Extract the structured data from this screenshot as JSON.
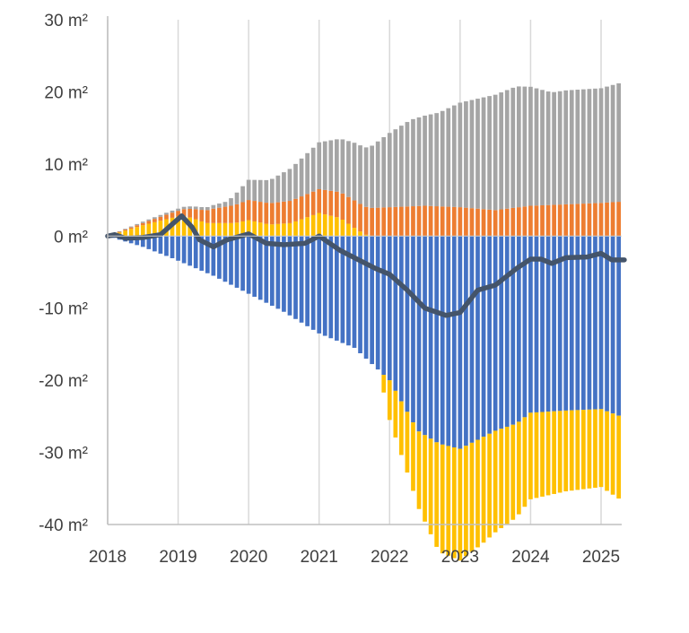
{
  "chart_data": {
    "type": "bar",
    "stacked": true,
    "title": "",
    "xlabel": "",
    "ylabel": "",
    "ylim": [
      -40,
      30
    ],
    "yticks": [
      {
        "value": 30,
        "label": "30 m²"
      },
      {
        "value": 20,
        "label": "20 m²"
      },
      {
        "value": 10,
        "label": "10 m²"
      },
      {
        "value": 0,
        "label": "0 m²"
      },
      {
        "value": -10,
        "label": "-10 m²"
      },
      {
        "value": -20,
        "label": "-20 m²"
      },
      {
        "value": -30,
        "label": "-30 m²"
      },
      {
        "value": -40,
        "label": "-40 m²"
      }
    ],
    "xlim": [
      2018.0,
      2025.33
    ],
    "xticks": [
      {
        "value": 2018,
        "label": "2018"
      },
      {
        "value": 2019,
        "label": "2019"
      },
      {
        "value": 2020,
        "label": "2020"
      },
      {
        "value": 2021,
        "label": "2021"
      },
      {
        "value": 2022,
        "label": "2022"
      },
      {
        "value": 2023,
        "label": "2023"
      },
      {
        "value": 2024,
        "label": "2024"
      },
      {
        "value": 2025,
        "label": "2025"
      }
    ],
    "grid": {
      "vertical": true,
      "horizontal": false
    },
    "colors": {
      "blue": "#4472c4",
      "yellow": "#ffc000",
      "orange": "#ed7d31",
      "gray": "#a5a5a5",
      "line": "#44546a",
      "grid": "#d9d9d9",
      "axis": "#bfbfbf"
    },
    "series": [
      {
        "color_key": "blue",
        "kind": "bar",
        "keyframes": [
          [
            2018.0,
            0
          ],
          [
            2018.5,
            -1.5
          ],
          [
            2018.9,
            -3
          ],
          [
            2019.5,
            -5.5
          ],
          [
            2020.0,
            -8
          ],
          [
            2020.5,
            -10.5
          ],
          [
            2021.0,
            -13.5
          ],
          [
            2021.5,
            -15.5
          ],
          [
            2022.0,
            -20
          ],
          [
            2022.4,
            -27
          ],
          [
            2022.7,
            -28.8
          ],
          [
            2023.0,
            -29.5
          ],
          [
            2023.5,
            -27
          ],
          [
            2023.8,
            -26
          ],
          [
            2024.0,
            -24.5
          ],
          [
            2024.5,
            -24.2
          ],
          [
            2025.0,
            -24
          ],
          [
            2025.33,
            -25.2
          ]
        ]
      },
      {
        "color_key": "yellow",
        "kind": "bar",
        "keyframes": [
          [
            2018.0,
            0
          ],
          [
            2018.5,
            1.5
          ],
          [
            2018.9,
            2.5
          ],
          [
            2019.05,
            2.8
          ],
          [
            2019.2,
            2.5
          ],
          [
            2019.4,
            1.8
          ],
          [
            2019.8,
            1.8
          ],
          [
            2020.0,
            2.2
          ],
          [
            2020.3,
            1.6
          ],
          [
            2020.6,
            1.8
          ],
          [
            2021.0,
            3.2
          ],
          [
            2021.3,
            2.5
          ],
          [
            2021.55,
            0.8
          ],
          [
            2021.7,
            0
          ],
          [
            2021.85,
            0
          ],
          [
            2022.0,
            -5.5
          ],
          [
            2022.3,
            -9
          ],
          [
            2022.7,
            -15
          ],
          [
            2023.0,
            -15.5
          ],
          [
            2023.3,
            -14.8
          ],
          [
            2023.8,
            -13
          ],
          [
            2024.0,
            -12
          ],
          [
            2024.5,
            -11.2
          ],
          [
            2025.0,
            -10.8
          ],
          [
            2025.33,
            -11.7
          ]
        ]
      },
      {
        "color_key": "orange",
        "kind": "bar",
        "keyframes": [
          [
            2018.0,
            0
          ],
          [
            2018.5,
            0.3
          ],
          [
            2019.0,
            0.8
          ],
          [
            2019.5,
            2.0
          ],
          [
            2020.0,
            2.8
          ],
          [
            2021.0,
            3.3
          ],
          [
            2021.5,
            3.8
          ],
          [
            2022.0,
            4.0
          ],
          [
            2022.5,
            4.2
          ],
          [
            2023.0,
            4.0
          ],
          [
            2023.5,
            3.6
          ],
          [
            2024.0,
            4.2
          ],
          [
            2025.0,
            4.6
          ],
          [
            2025.33,
            4.8
          ]
        ]
      },
      {
        "color_key": "gray",
        "kind": "bar",
        "keyframes": [
          [
            2018.0,
            0
          ],
          [
            2018.5,
            0.2
          ],
          [
            2019.0,
            0.3
          ],
          [
            2019.4,
            0.4
          ],
          [
            2019.7,
            0.7
          ],
          [
            2020.0,
            2.8
          ],
          [
            2020.3,
            3.2
          ],
          [
            2020.6,
            4.5
          ],
          [
            2021.0,
            6.5
          ],
          [
            2021.5,
            8.0
          ],
          [
            2021.7,
            8.3
          ],
          [
            2021.85,
            9.3
          ],
          [
            2022.0,
            10.3
          ],
          [
            2022.3,
            12.0
          ],
          [
            2022.7,
            13.0
          ],
          [
            2023.0,
            14.5
          ],
          [
            2023.5,
            16.0
          ],
          [
            2023.8,
            16.8
          ],
          [
            2024.0,
            16.5
          ],
          [
            2024.3,
            15.6
          ],
          [
            2024.5,
            15.8
          ],
          [
            2025.0,
            15.9
          ],
          [
            2025.33,
            16.6
          ]
        ]
      },
      {
        "color_key": "line",
        "kind": "line",
        "keyframes": [
          [
            2018.0,
            0
          ],
          [
            2018.1,
            0.2
          ],
          [
            2018.25,
            -0.3
          ],
          [
            2018.5,
            -0.2
          ],
          [
            2018.75,
            0.2
          ],
          [
            2018.9,
            1.5
          ],
          [
            2019.05,
            2.8
          ],
          [
            2019.2,
            1.2
          ],
          [
            2019.3,
            -0.5
          ],
          [
            2019.5,
            -1.5
          ],
          [
            2019.7,
            -0.5
          ],
          [
            2020.0,
            0.3
          ],
          [
            2020.25,
            -1.0
          ],
          [
            2020.5,
            -1.2
          ],
          [
            2020.8,
            -1.0
          ],
          [
            2021.0,
            0.0
          ],
          [
            2021.3,
            -2.0
          ],
          [
            2021.6,
            -3.5
          ],
          [
            2021.8,
            -4.5
          ],
          [
            2022.0,
            -5.3
          ],
          [
            2022.25,
            -7.5
          ],
          [
            2022.5,
            -10.0
          ],
          [
            2022.8,
            -11.0
          ],
          [
            2023.0,
            -10.6
          ],
          [
            2023.25,
            -7.5
          ],
          [
            2023.5,
            -6.8
          ],
          [
            2023.8,
            -4.5
          ],
          [
            2024.0,
            -3.2
          ],
          [
            2024.15,
            -3.2
          ],
          [
            2024.3,
            -3.8
          ],
          [
            2024.5,
            -3.0
          ],
          [
            2024.8,
            -2.9
          ],
          [
            2025.0,
            -2.4
          ],
          [
            2025.15,
            -3.3
          ],
          [
            2025.33,
            -3.3
          ]
        ]
      }
    ]
  }
}
